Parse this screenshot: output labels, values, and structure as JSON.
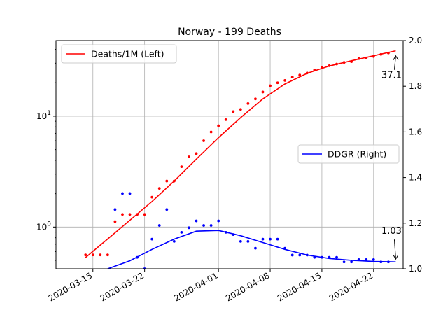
{
  "chart_data": {
    "type": "line",
    "title": "Norway - 199 Deaths",
    "xlabel": "",
    "ylabel_left": "",
    "ylabel_right": "",
    "x_range": [
      "2020-03-10",
      "2020-04-26"
    ],
    "x_ticks": [
      "2020-03-15",
      "2020-03-22",
      "2020-04-01",
      "2020-04-08",
      "2020-04-15",
      "2020-04-22"
    ],
    "y_left": {
      "scale": "log",
      "range": [
        0.42,
        48
      ],
      "ticks": [
        {
          "value": 1,
          "base": "10",
          "exp": "0"
        },
        {
          "value": 10,
          "base": "10",
          "exp": "1"
        }
      ]
    },
    "y_right": {
      "scale": "linear",
      "range": [
        1.0,
        2.0
      ],
      "ticks": [
        "1.0",
        "1.2",
        "1.4",
        "1.6",
        "1.8",
        "2.0"
      ]
    },
    "grid": true,
    "colors": {
      "deaths": "#ff0000",
      "ddgr": "#0000ff"
    },
    "legends": [
      {
        "label": "Deaths/1M (Left)",
        "color": "#ff0000",
        "placement": "upper-left"
      },
      {
        "label": "DDGR (Right)",
        "color": "#0000ff",
        "placement": "center-right"
      }
    ],
    "series": [
      {
        "name": "Deaths/1M (Left)",
        "axis": "left",
        "style": "points",
        "color": "#ff0000",
        "x": [
          "2020-03-14",
          "2020-03-15",
          "2020-03-16",
          "2020-03-17",
          "2020-03-18",
          "2020-03-19",
          "2020-03-20",
          "2020-03-21",
          "2020-03-22",
          "2020-03-23",
          "2020-03-24",
          "2020-03-25",
          "2020-03-26",
          "2020-03-27",
          "2020-03-28",
          "2020-03-29",
          "2020-03-30",
          "2020-03-31",
          "2020-04-01",
          "2020-04-02",
          "2020-04-03",
          "2020-04-04",
          "2020-04-05",
          "2020-04-06",
          "2020-04-07",
          "2020-04-08",
          "2020-04-09",
          "2020-04-10",
          "2020-04-11",
          "2020-04-12",
          "2020-04-13",
          "2020-04-14",
          "2020-04-15",
          "2020-04-16",
          "2020-04-17",
          "2020-04-18",
          "2020-04-19",
          "2020-04-20",
          "2020-04-21",
          "2020-04-22",
          "2020-04-23",
          "2020-04-24"
        ],
        "values": [
          0.56,
          0.56,
          0.56,
          0.56,
          1.12,
          1.3,
          1.3,
          1.3,
          1.3,
          1.86,
          2.23,
          2.6,
          2.6,
          3.5,
          4.3,
          4.6,
          6.0,
          7.2,
          8.2,
          9.3,
          11.0,
          11.5,
          13.0,
          14.3,
          16.5,
          18.8,
          20.0,
          21.0,
          22.5,
          23.5,
          24.5,
          26.0,
          27.5,
          28.5,
          29.5,
          30.5,
          31.0,
          33.0,
          33.5,
          34.5,
          36.0,
          37.1
        ]
      },
      {
        "name": "Deaths/1M (Left)",
        "axis": "left",
        "style": "line",
        "color": "#ff0000",
        "x": [
          "2020-03-14",
          "2020-03-17",
          "2020-03-20",
          "2020-03-23",
          "2020-03-26",
          "2020-03-29",
          "2020-04-01",
          "2020-04-04",
          "2020-04-07",
          "2020-04-10",
          "2020-04-13",
          "2020-04-16",
          "2020-04-19",
          "2020-04-22",
          "2020-04-25"
        ],
        "values": [
          0.53,
          0.78,
          1.15,
          1.7,
          2.6,
          4.1,
          6.4,
          9.7,
          14.3,
          19.5,
          24.3,
          28.3,
          31.6,
          35.0,
          38.8
        ]
      },
      {
        "name": "DDGR (Right)",
        "axis": "right",
        "style": "points",
        "color": "#0000ff",
        "x": [
          "2020-03-18",
          "2020-03-19",
          "2020-03-20",
          "2020-03-21",
          "2020-03-22",
          "2020-03-23",
          "2020-03-24",
          "2020-03-25",
          "2020-03-26",
          "2020-03-27",
          "2020-03-28",
          "2020-03-29",
          "2020-03-30",
          "2020-03-31",
          "2020-04-01",
          "2020-04-02",
          "2020-04-03",
          "2020-04-04",
          "2020-04-05",
          "2020-04-06",
          "2020-04-07",
          "2020-04-08",
          "2020-04-09",
          "2020-04-10",
          "2020-04-11",
          "2020-04-12",
          "2020-04-13",
          "2020-04-14",
          "2020-04-15",
          "2020-04-16",
          "2020-04-17",
          "2020-04-18",
          "2020-04-19",
          "2020-04-20",
          "2020-04-21",
          "2020-04-22",
          "2020-04-23",
          "2020-04-24"
        ],
        "values": [
          1.26,
          1.33,
          1.33,
          1.05,
          1.0,
          1.13,
          1.19,
          1.26,
          1.12,
          1.16,
          1.18,
          1.21,
          1.19,
          1.19,
          1.21,
          1.16,
          1.15,
          1.12,
          1.12,
          1.09,
          1.13,
          1.13,
          1.13,
          1.09,
          1.06,
          1.06,
          1.06,
          1.05,
          1.05,
          1.05,
          1.05,
          1.03,
          1.03,
          1.04,
          1.04,
          1.04,
          1.03,
          1.03
        ]
      },
      {
        "name": "DDGR (Right)",
        "axis": "right",
        "style": "line",
        "color": "#0000ff",
        "x": [
          "2020-03-17",
          "2020-03-20",
          "2020-03-23",
          "2020-03-26",
          "2020-03-29",
          "2020-04-01",
          "2020-04-04",
          "2020-04-07",
          "2020-04-10",
          "2020-04-13",
          "2020-04-16",
          "2020-04-19",
          "2020-04-22",
          "2020-04-25"
        ],
        "values": [
          1.0,
          1.035,
          1.085,
          1.13,
          1.165,
          1.168,
          1.145,
          1.115,
          1.085,
          1.06,
          1.045,
          1.037,
          1.032,
          1.03
        ]
      }
    ],
    "annotations": [
      {
        "text": "37.1",
        "series": "Deaths/1M (Left)",
        "x": "2020-04-25",
        "value": 37.1,
        "axis": "left"
      },
      {
        "text": "1.03",
        "series": "DDGR (Right)",
        "x": "2020-04-25",
        "value": 1.03,
        "axis": "right"
      }
    ]
  }
}
